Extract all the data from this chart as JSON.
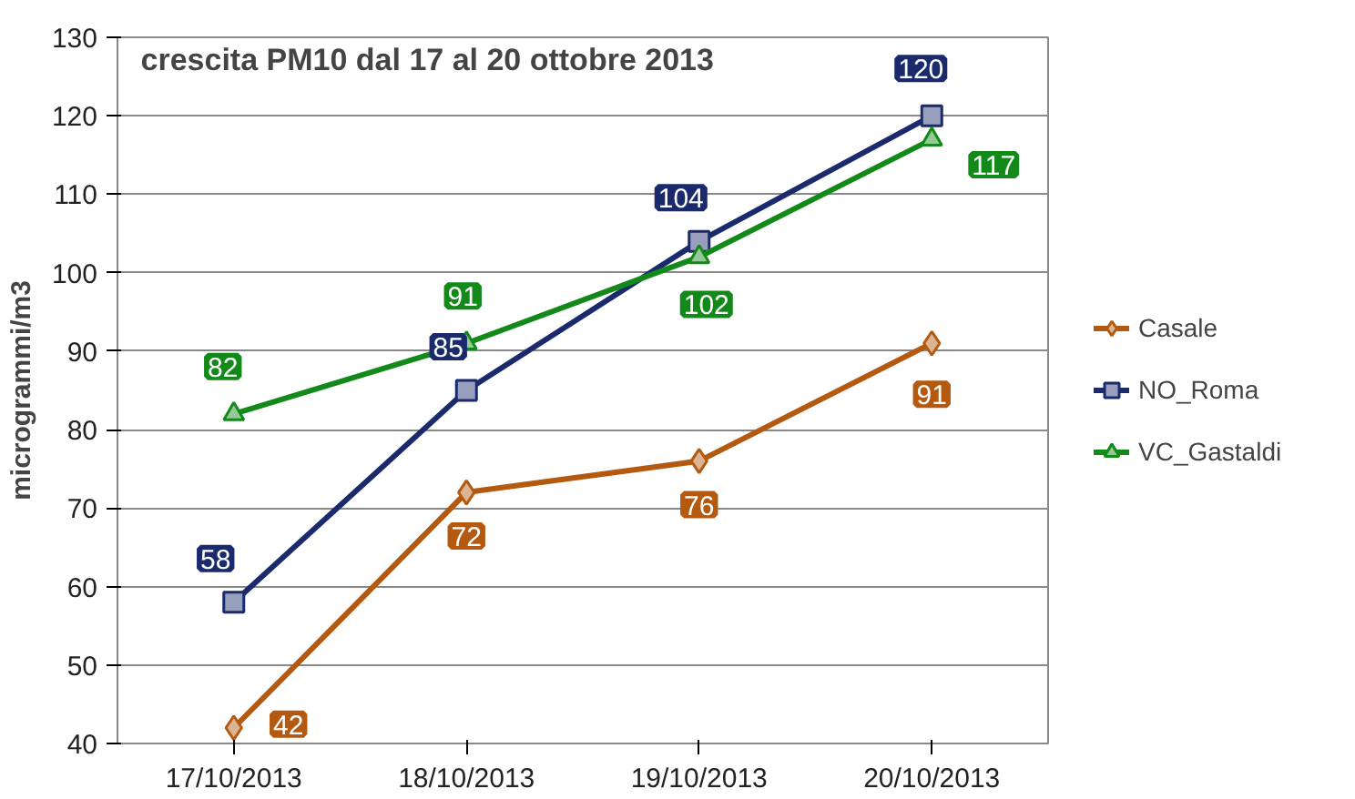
{
  "chart_data": {
    "type": "line",
    "title": "crescita PM10 dal 17 al 20 ottobre 2013",
    "ylabel": "microgrammi/m3",
    "categories": [
      "17/10/2013",
      "18/10/2013",
      "19/10/2013",
      "20/10/2013"
    ],
    "series": [
      {
        "name": "Casale",
        "color": "#b35a10",
        "marker": "diamond",
        "values": [
          42,
          72,
          76,
          91
        ]
      },
      {
        "name": "NO_Roma",
        "color": "#1a2a6c",
        "marker": "square",
        "values": [
          58,
          85,
          104,
          120
        ]
      },
      {
        "name": "VC_Gastaldi",
        "color": "#13891a",
        "marker": "triangle",
        "values": [
          82,
          91,
          102,
          117
        ]
      }
    ],
    "ylim": [
      40,
      130
    ],
    "yticks": [
      40,
      50,
      60,
      70,
      80,
      90,
      100,
      110,
      120,
      130
    ],
    "grid": "y",
    "legend": "right",
    "data_labels": true,
    "line_style": "solid"
  }
}
